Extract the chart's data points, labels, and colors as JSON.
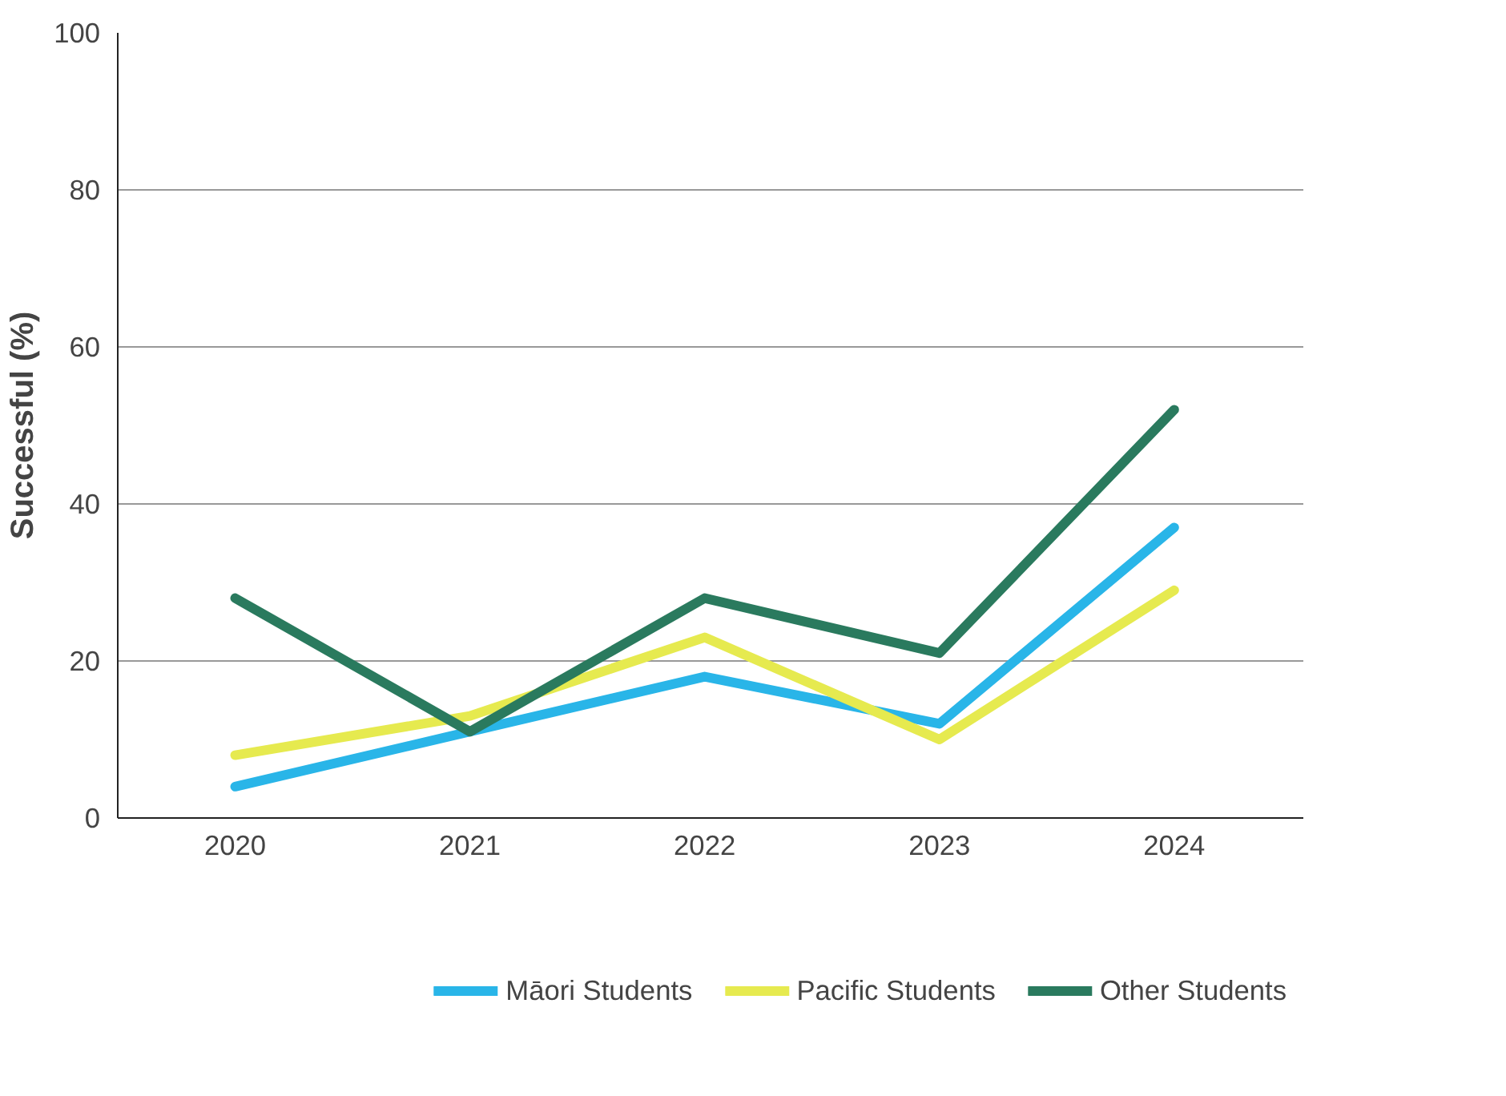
{
  "chart_data": {
    "type": "line",
    "ylabel": "Successful (%)",
    "categories": [
      "2020",
      "2021",
      "2022",
      "2023",
      "2024"
    ],
    "series": [
      {
        "name": "Māori Students",
        "color": "#29b5e8",
        "values": [
          4,
          11,
          18,
          12,
          37
        ]
      },
      {
        "name": "Pacific Students",
        "color": "#e6ea4f",
        "values": [
          8,
          13,
          23,
          10,
          29
        ]
      },
      {
        "name": "Other Students",
        "color": "#2a7a5e",
        "values": [
          28,
          11,
          28,
          21,
          52
        ]
      }
    ],
    "ylim": [
      0,
      100
    ],
    "yticks": [
      0,
      20,
      40,
      60,
      80,
      100
    ],
    "grid": "y",
    "legend": "bottom",
    "marker": "none",
    "line_style": "solid"
  }
}
